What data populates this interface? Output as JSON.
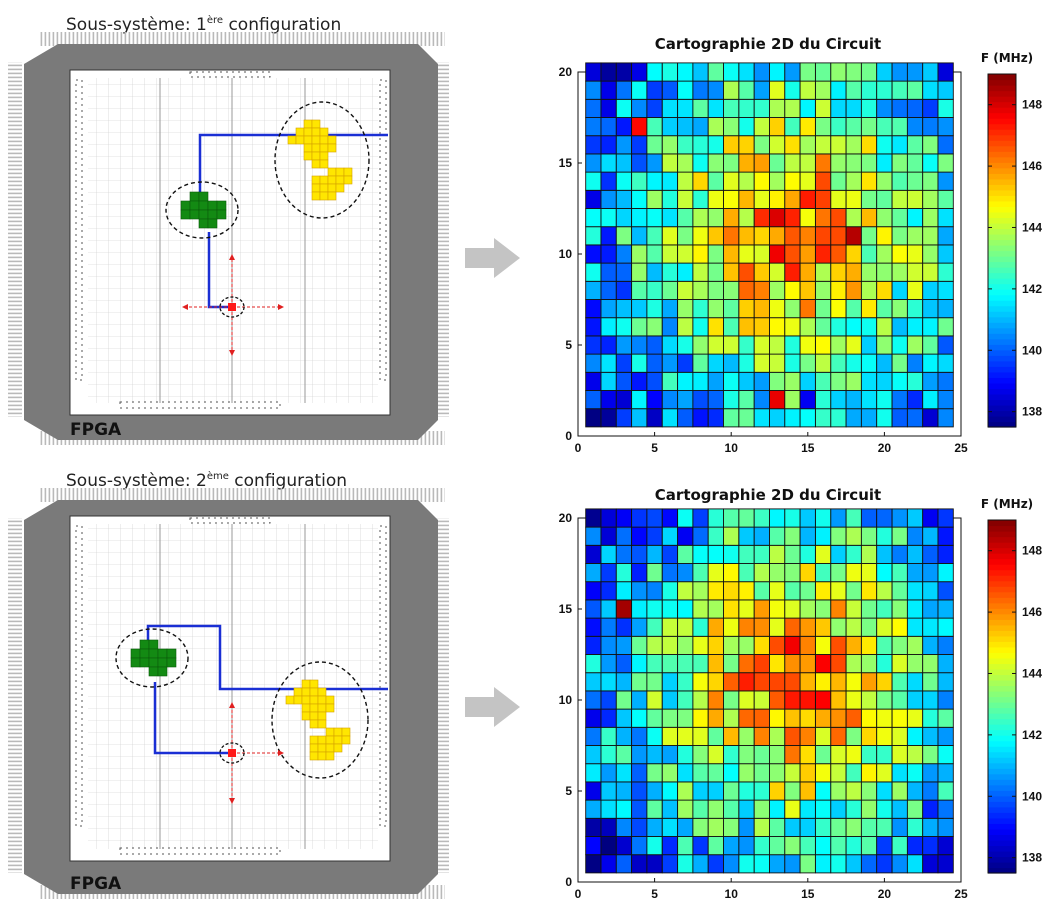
{
  "panels": [
    {
      "title_prefix": "Sous-système: ",
      "title_number": "1",
      "title_sup": "ère",
      "title_suffix": " configuration",
      "chip_label": "FPGA",
      "map_title": "Cartographie 2D du Circuit",
      "colorbar_label": "F (MHz)"
    },
    {
      "title_prefix": "Sous-système: ",
      "title_number": "2",
      "title_sup": "ème",
      "title_suffix": " configuration",
      "chip_label": "FPGA",
      "map_title": "Cartographie 2D du Circuit",
      "colorbar_label": "F (MHz)"
    }
  ],
  "chart_data": [
    {
      "type": "heatmap",
      "title": "Cartographie 2D du Circuit",
      "xlim": [
        0,
        25
      ],
      "ylim": [
        0,
        20
      ],
      "xticks": [
        0,
        5,
        10,
        15,
        20,
        25
      ],
      "yticks": [
        0,
        5,
        10,
        15,
        20
      ],
      "colorbar_label": "F (MHz)",
      "colorbar_range": [
        137.5,
        149
      ],
      "colorbar_ticks": [
        138,
        140,
        142,
        144,
        146,
        148
      ],
      "colormap": "jet",
      "seed": 7,
      "hot_spots": [
        {
          "x": 18,
          "y": 11,
          "value": 148.4
        },
        {
          "x": 13,
          "y": 2,
          "value": 147.8
        },
        {
          "x": 4,
          "y": 17,
          "value": 147.5
        },
        {
          "x": 7,
          "y": 4,
          "value": 139.6
        },
        {
          "x": 15,
          "y": 2,
          "value": 138.8
        },
        {
          "x": 2,
          "y": 1,
          "value": 137.8
        },
        {
          "x": 1,
          "y": 19,
          "value": 140.5
        }
      ]
    },
    {
      "type": "heatmap",
      "title": "Cartographie 2D du Circuit",
      "xlim": [
        0,
        25
      ],
      "ylim": [
        0,
        20
      ],
      "xticks": [
        0,
        5,
        10,
        15,
        20,
        25
      ],
      "yticks": [
        0,
        5,
        10,
        15,
        20
      ],
      "colorbar_label": "F (MHz)",
      "colorbar_range": [
        137.5,
        149
      ],
      "colorbar_ticks": [
        138,
        140,
        142,
        144,
        146,
        148
      ],
      "colormap": "jet",
      "seed": 13,
      "hot_spots": [
        {
          "x": 3,
          "y": 15,
          "value": 148.6
        },
        {
          "x": 7,
          "y": 19,
          "value": 138.8
        },
        {
          "x": 3,
          "y": 2,
          "value": 138.4
        },
        {
          "x": 1,
          "y": 10,
          "value": 140.2
        },
        {
          "x": 1,
          "y": 19,
          "value": 140.5
        },
        {
          "x": 23,
          "y": 15,
          "value": 140.8
        },
        {
          "x": 16,
          "y": 12,
          "value": 147.6
        }
      ]
    }
  ]
}
